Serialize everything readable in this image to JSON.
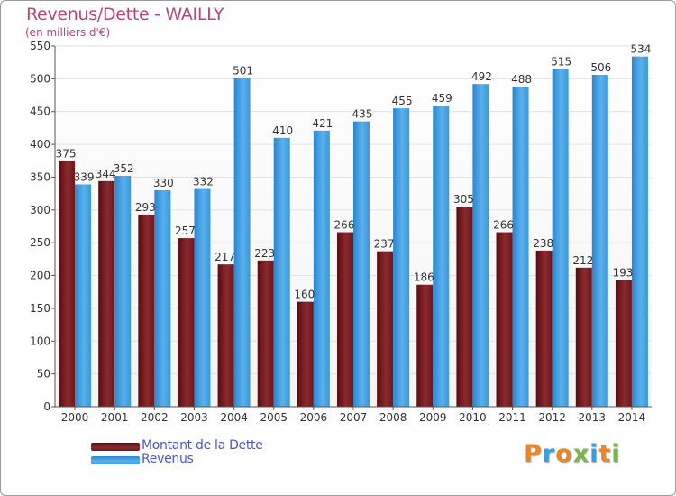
{
  "chart_title": "Revenus/Dette - WAILLY",
  "chart_subtitle": "(en milliers d'€)",
  "logo_text": "Proxiti",
  "colors": {
    "debt": "#7a1a1e",
    "revenue": "#3d9be0",
    "title": "#b5457a",
    "legend_text": "#4b55c8"
  },
  "chart_data": {
    "type": "bar",
    "title": "Revenus/Dette - WAILLY",
    "subtitle": "(en milliers d'€)",
    "categories": [
      "2000",
      "2001",
      "2002",
      "2003",
      "2004",
      "2005",
      "2006",
      "2007",
      "2008",
      "2009",
      "2010",
      "2011",
      "2012",
      "2013",
      "2014"
    ],
    "series": [
      {
        "name": "Montant de la Dette",
        "values": [
          375,
          344,
          293,
          257,
          217,
          223,
          160,
          266,
          237,
          186,
          305,
          266,
          238,
          212,
          193
        ]
      },
      {
        "name": "Revenus",
        "values": [
          339,
          352,
          330,
          332,
          501,
          410,
          421,
          435,
          455,
          459,
          492,
          488,
          515,
          506,
          534
        ]
      }
    ],
    "ylim": [
      0,
      550
    ],
    "yticks": [
      0,
      50,
      100,
      150,
      200,
      250,
      300,
      350,
      400,
      450,
      500,
      550
    ],
    "grid": true,
    "legend_position": "bottom-left"
  }
}
